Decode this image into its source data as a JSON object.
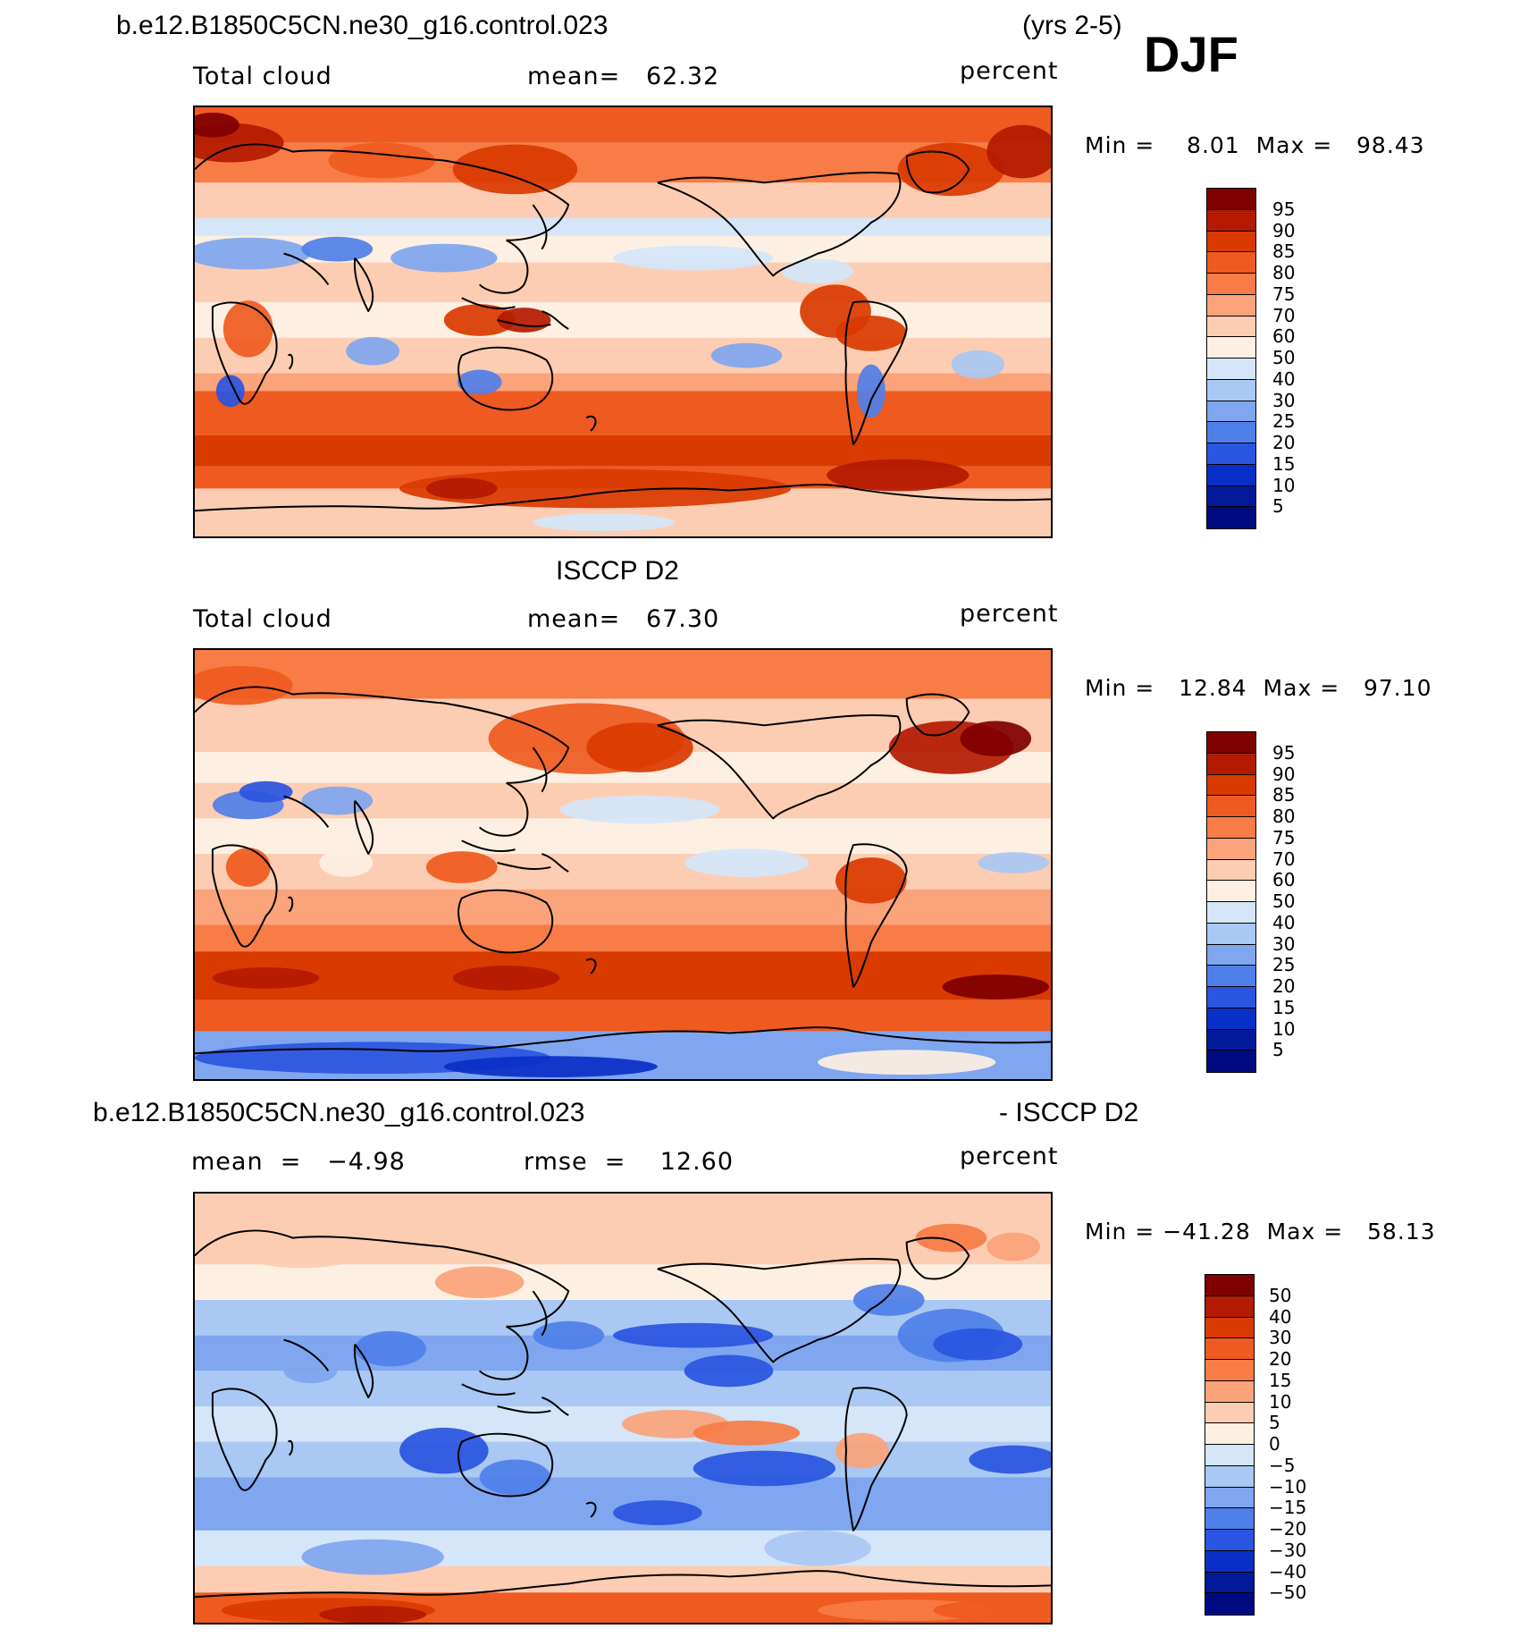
{
  "header": {
    "case_name": "b.e12.B1850C5CN.ne30_g16.control.023",
    "years": "(yrs 2-5)",
    "season": "DJF"
  },
  "panels": [
    {
      "id": "model",
      "title": "",
      "left_label": "Total cloud",
      "center_label": "mean=   62.32",
      "right_label": "percent",
      "minmax": "Min =    8.01  Max =   98.43",
      "colorbar": {
        "labels": [
          "95",
          "90",
          "85",
          "80",
          "75",
          "70",
          "60",
          "50",
          "40",
          "30",
          "25",
          "20",
          "15",
          "10",
          "5"
        ],
        "colors": [
          "#7f0000",
          "#b31a00",
          "#d93a00",
          "#ef5a20",
          "#f77c45",
          "#fba37a",
          "#fdcdb3",
          "#fdf0e2",
          "#d4e6f8",
          "#a9c8f3",
          "#7fa6ef",
          "#4f7fe8",
          "#2a55e0",
          "#0a2fc6",
          "#001a9a",
          "#000a80"
        ]
      },
      "map_style": "model"
    },
    {
      "id": "obs",
      "title": "ISCCP D2",
      "left_label": "Total cloud",
      "center_label": "mean=   67.30",
      "right_label": "percent",
      "minmax": "Min =   12.84  Max =   97.10",
      "colorbar": {
        "labels": [
          "95",
          "90",
          "85",
          "80",
          "75",
          "70",
          "60",
          "50",
          "40",
          "30",
          "25",
          "20",
          "15",
          "10",
          "5"
        ],
        "colors": [
          "#7f0000",
          "#b31a00",
          "#d93a00",
          "#ef5a20",
          "#f77c45",
          "#fba37a",
          "#fdcdb3",
          "#fdf0e2",
          "#d4e6f8",
          "#a9c8f3",
          "#7fa6ef",
          "#4f7fe8",
          "#2a55e0",
          "#0a2fc6",
          "#001a9a",
          "#000a80"
        ]
      },
      "map_style": "obs"
    },
    {
      "id": "diff",
      "title_left": "b.e12.B1850C5CN.ne30_g16.control.023",
      "title_right": "- ISCCP D2",
      "left_label": "mean  =   −4.98",
      "center_label": "rmse  =    12.60",
      "right_label": "percent",
      "minmax": "Min = −41.28  Max =   58.13",
      "colorbar": {
        "labels": [
          "50",
          "40",
          "30",
          "20",
          "15",
          "10",
          "5",
          "0",
          "−5",
          "−10",
          "−15",
          "−20",
          "−30",
          "−40",
          "−50"
        ],
        "colors": [
          "#7f0000",
          "#b31a00",
          "#d93a00",
          "#ef5a20",
          "#f77c45",
          "#fba37a",
          "#fdcdb3",
          "#fdf0e2",
          "#d4e6f8",
          "#a9c8f3",
          "#7fa6ef",
          "#4f7fe8",
          "#2a55e0",
          "#0a2fc6",
          "#001a9a",
          "#000a80"
        ]
      },
      "map_style": "diff"
    }
  ]
}
